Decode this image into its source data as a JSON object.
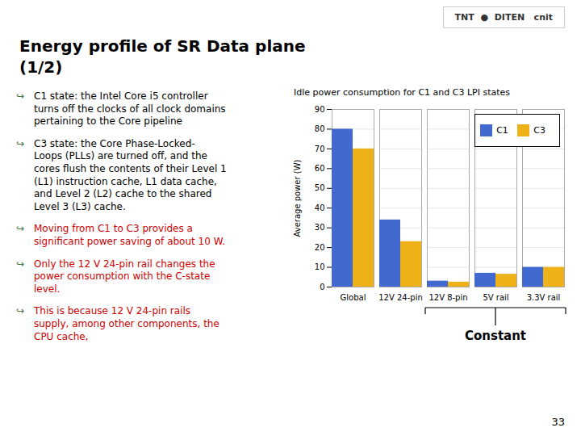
{
  "slide_title": [
    "Energy profile of SR Data plane",
    "(1/2)"
  ],
  "logo": "TNT  ●  DITEN   cnit",
  "bullet": "↪",
  "notes": [
    "C1 state: the Intel Core i5 controller\nturns off the clocks of all clock domains\npertaining to the Core pipeline",
    "C3 state: the Core Phase-Locked-\nLoops (PLLs) are turned off, and the\ncores flush the contents of their Level 1\n(L1) instruction cache, L1 data cache,\nand Level 2 (L2) cache to the shared\nLevel 3 (L3) cache."
  ],
  "highlights": [
    "Moving from C1 to C3 provides a\nsignificant power saving of about 10 W.",
    "Only the 12 V 24-pin rail changes the\npower consumption with the C-state\nlevel.",
    "This is because 12 V 24-pin rails\nsupply, among other components, the\nCPU cache,"
  ],
  "page_number": "33",
  "chart_data": {
    "type": "bar",
    "title": "Idle power consumption for C1 and C3 LPI states",
    "categories": [
      "Global",
      "12V 24-pin",
      "12V 8-pin",
      "5V rail",
      "3.3V rail"
    ],
    "series": [
      {
        "name": "C1",
        "values": [
          80,
          34,
          3,
          7,
          10
        ]
      },
      {
        "name": "C3",
        "values": [
          70,
          23,
          2.5,
          6.5,
          10
        ]
      }
    ],
    "ylabel": "Average power (W)",
    "ylim": [
      0,
      90
    ],
    "yticks": [
      0,
      10,
      20,
      30,
      40,
      50,
      60,
      70,
      80,
      90
    ],
    "grid": true,
    "legend": "upper right",
    "annotations": [
      {
        "text": "Constant",
        "categories": [
          "12V 8-pin",
          "5V rail",
          "3.3V rail"
        ]
      }
    ]
  }
}
